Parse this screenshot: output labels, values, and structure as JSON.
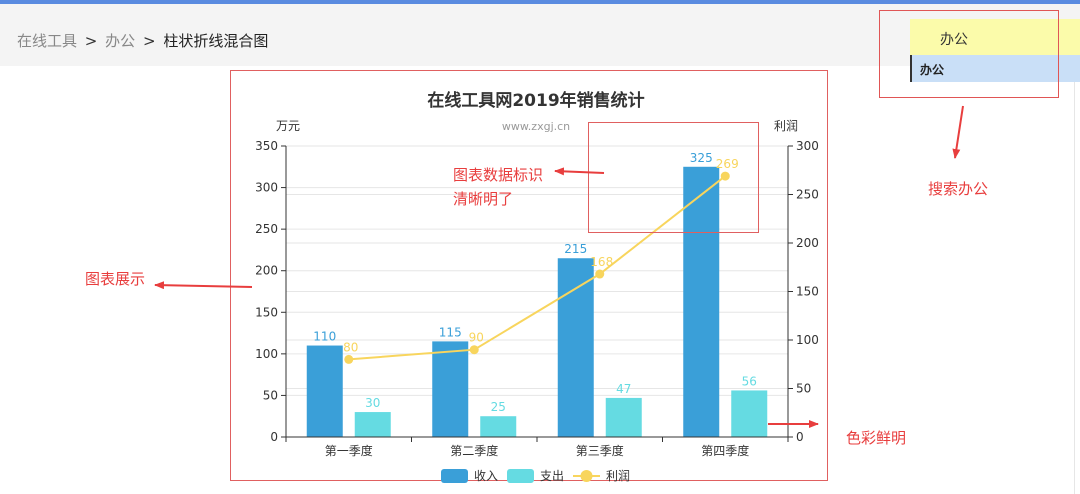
{
  "breadcrumb": {
    "item1": "在线工具",
    "item2": "办公",
    "current": "柱状折线混合图",
    "separator": ">"
  },
  "search": {
    "value": "办公",
    "suggestion": "办公"
  },
  "annotations": {
    "search": "搜索办公",
    "chart_display": "图表展示",
    "data_labels_line1": "图表数据标识",
    "data_labels_line2": "清晰明了",
    "colors": "色彩鲜明"
  },
  "colors": {
    "bar1": "#3a9fd8",
    "bar2": "#65dbe2",
    "line": "#f8d55d",
    "annotation": "#e83e3e"
  },
  "chart_data": {
    "type": "bar",
    "title": "在线工具网2019年销售统计",
    "watermark": "www.zxgj.cn",
    "categories": [
      "第一季度",
      "第二季度",
      "第三季度",
      "第四季度"
    ],
    "series": [
      {
        "name": "收入",
        "type": "bar",
        "axis": "left",
        "values": [
          110,
          115,
          215,
          325
        ]
      },
      {
        "name": "支出",
        "type": "bar",
        "axis": "left",
        "values": [
          30,
          25,
          47,
          56
        ]
      },
      {
        "name": "利润",
        "type": "line",
        "axis": "right",
        "values": [
          80,
          90,
          168,
          269
        ]
      }
    ],
    "ylabel_left": "万元",
    "ylabel_right": "利润",
    "ylim_left": [
      0,
      350
    ],
    "yticks_left": [
      0,
      50,
      100,
      150,
      200,
      250,
      300,
      350
    ],
    "ylim_right": [
      0,
      300
    ],
    "yticks_right": [
      0,
      50,
      100,
      150,
      200,
      250,
      300
    ],
    "grid": true,
    "legend_position": "bottom-center"
  }
}
